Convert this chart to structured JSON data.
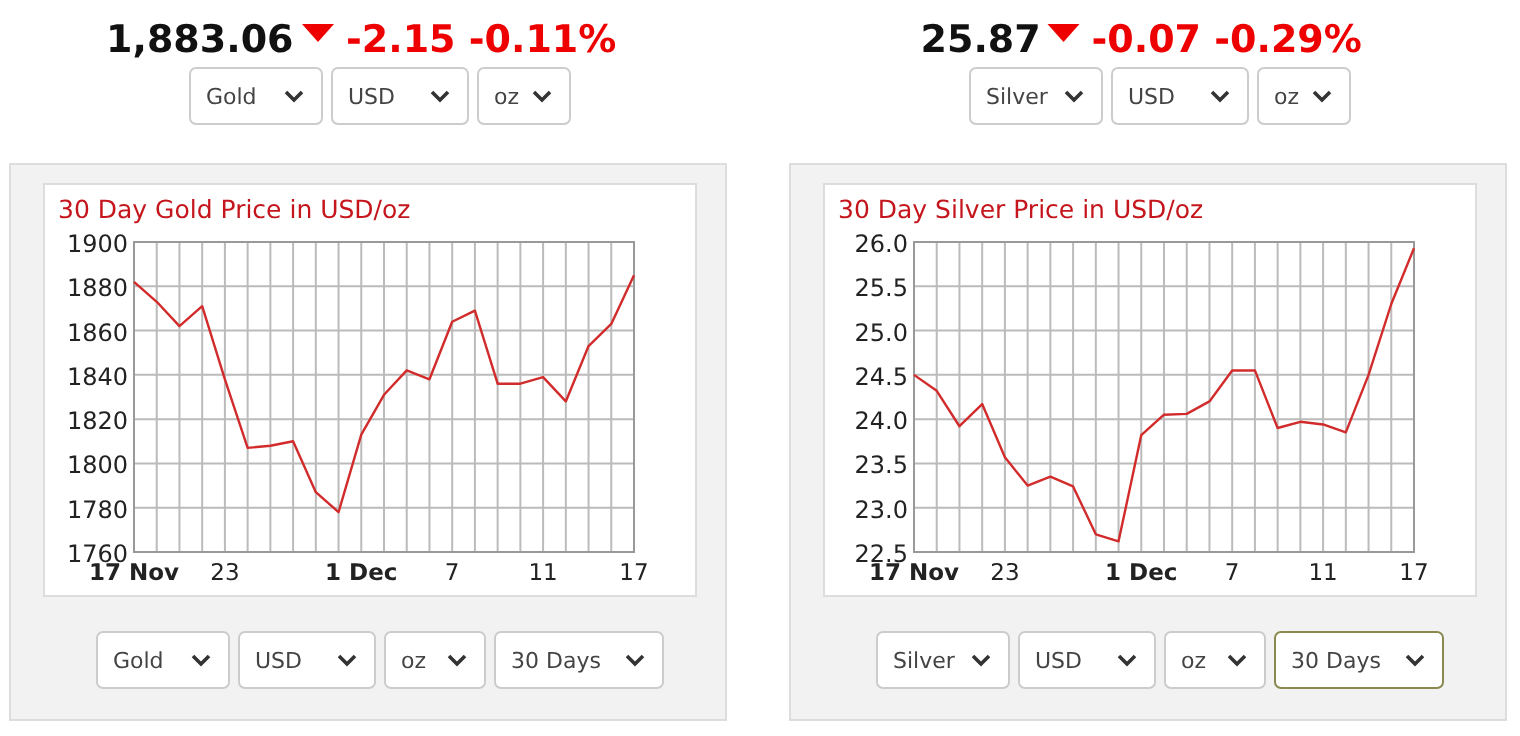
{
  "chart_data": [
    {
      "type": "line",
      "title": "30 Day Gold Price in USD/oz",
      "annotations": [
        "1,883.06",
        "-2.15",
        "-0.11%",
        "Gold",
        "USD",
        "oz",
        "Gold",
        "USD",
        "oz",
        "30 Days"
      ],
      "categories": [
        "17 Nov",
        null,
        null,
        null,
        "23",
        null,
        null,
        null,
        null,
        null,
        "1 Dec",
        null,
        null,
        null,
        "7",
        null,
        null,
        null,
        "11",
        null,
        null,
        null,
        "17"
      ],
      "series": [
        {
          "color": "#d22b2b",
          "values": [
            1882,
            1873,
            1862,
            1871,
            1838,
            1807,
            1808,
            1810,
            1787,
            1778,
            1813,
            1831,
            1842,
            1838,
            1864,
            1869,
            1836,
            1836,
            1839,
            1828,
            1853,
            1863,
            1885
          ]
        }
      ],
      "ylim": [
        1760,
        1900
      ],
      "yticks": [
        1760,
        1780,
        1800,
        1820,
        1840,
        1860,
        1880,
        1900
      ],
      "grid": true,
      "marker": "none"
    },
    {
      "type": "line",
      "title": "30 Day Silver Price in USD/oz",
      "annotations": [
        "25.87",
        "-0.07",
        "-0.29%",
        "Silver",
        "USD",
        "oz",
        "Silver",
        "USD",
        "oz",
        "30 Days"
      ],
      "categories": [
        "17 Nov",
        null,
        null,
        null,
        "23",
        null,
        null,
        null,
        null,
        null,
        "1 Dec",
        null,
        null,
        null,
        "7",
        null,
        null,
        null,
        "11",
        null,
        null,
        null,
        "17"
      ],
      "series": [
        {
          "color": "#d22b2b",
          "values": [
            24.5,
            24.32,
            23.92,
            24.17,
            23.57,
            23.25,
            23.35,
            23.24,
            22.7,
            22.62,
            23.82,
            24.05,
            24.06,
            24.2,
            24.55,
            24.55,
            23.9,
            23.97,
            23.94,
            23.85,
            24.5,
            25.3,
            25.93
          ]
        }
      ],
      "ylim": [
        22.5,
        26.0
      ],
      "yticks": [
        {
          "value": 22.5,
          "label": "22.5"
        },
        {
          "value": 23,
          "label": "23.0"
        },
        {
          "value": 23.5,
          "label": "23.5"
        },
        {
          "value": 24,
          "label": "24.0"
        },
        {
          "value": 24.5,
          "label": "24.5"
        },
        {
          "value": 25,
          "label": "25.0"
        },
        {
          "value": 25.5,
          "label": "25.5"
        },
        {
          "value": 26,
          "label": "26.0"
        }
      ],
      "grid": true,
      "marker": "none"
    }
  ]
}
